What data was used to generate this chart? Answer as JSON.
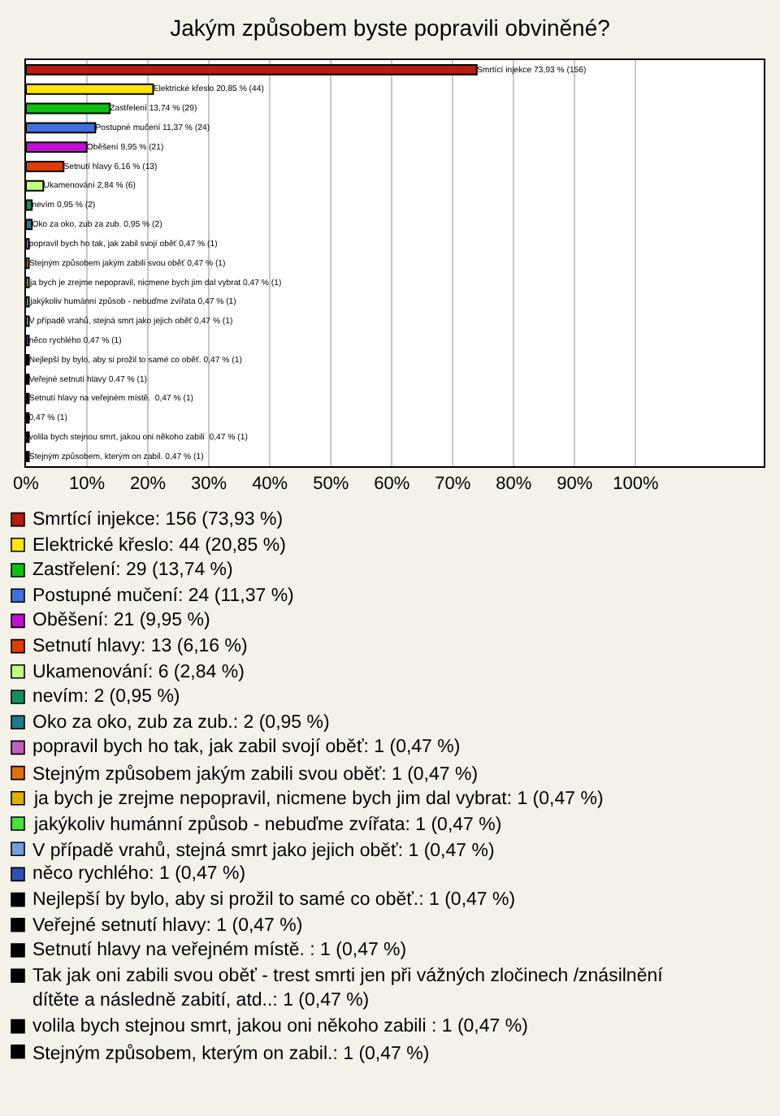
{
  "chart_data": {
    "type": "bar",
    "orientation": "horizontal",
    "title": "Jakým způsobem byste popravili obviněné?",
    "categories": [
      null,
      null,
      null,
      null,
      null,
      null,
      null,
      null,
      null,
      null,
      null,
      null,
      null,
      null,
      null,
      null,
      null,
      null,
      null,
      null,
      null
    ],
    "xlim": [
      0,
      121
    ],
    "xticks": [
      {
        "value": 0,
        "label": "0%"
      },
      {
        "value": 10,
        "label": "10%"
      },
      {
        "value": 20,
        "label": "20%"
      },
      {
        "value": 30,
        "label": "30%"
      },
      {
        "value": 40,
        "label": "40%"
      },
      {
        "value": 50,
        "label": "50%"
      },
      {
        "value": 60,
        "label": "60%"
      },
      {
        "value": 70,
        "label": "70%"
      },
      {
        "value": 80,
        "label": "80%"
      },
      {
        "value": 90,
        "label": "90%"
      },
      {
        "value": 100,
        "label": "100%"
      }
    ],
    "grid": "x",
    "legend": "bottom",
    "tick_labels": "x",
    "series": [
      {
        "name": "Smrtící injekce: 156 (73,93 %)",
        "color": "#b81c0c",
        "values": [
          73.93,
          null,
          null,
          null,
          null,
          null,
          null,
          null,
          null,
          null,
          null,
          null,
          null,
          null,
          null,
          null,
          null,
          null,
          null,
          null,
          null
        ],
        "value_labels": [
          "Smrtící injekce 73,93 % (156)",
          null,
          null,
          null,
          null,
          null,
          null,
          null,
          null,
          null,
          null,
          null,
          null,
          null,
          null,
          null,
          null,
          null,
          null,
          null,
          null
        ]
      },
      {
        "name": "Elektrické křeslo: 44 (20,85 %)",
        "color": "#ffe500",
        "values": [
          null,
          20.85,
          null,
          null,
          null,
          null,
          null,
          null,
          null,
          null,
          null,
          null,
          null,
          null,
          null,
          null,
          null,
          null,
          null,
          null,
          null
        ],
        "value_labels": [
          null,
          "Elektrické křeslo 20,85 % (44)",
          null,
          null,
          null,
          null,
          null,
          null,
          null,
          null,
          null,
          null,
          null,
          null,
          null,
          null,
          null,
          null,
          null,
          null,
          null
        ]
      },
      {
        "name": "Zastřelení: 29 (13,74 %)",
        "color": "#10c010",
        "values": [
          null,
          null,
          13.74,
          null,
          null,
          null,
          null,
          null,
          null,
          null,
          null,
          null,
          null,
          null,
          null,
          null,
          null,
          null,
          null,
          null,
          null
        ],
        "value_labels": [
          null,
          null,
          "Zastřelení 13,74 % (29)",
          null,
          null,
          null,
          null,
          null,
          null,
          null,
          null,
          null,
          null,
          null,
          null,
          null,
          null,
          null,
          null,
          null,
          null
        ]
      },
      {
        "name": "Postupné mučení: 24 (11,37 %)",
        "color": "#4070e0",
        "values": [
          null,
          null,
          null,
          11.37,
          null,
          null,
          null,
          null,
          null,
          null,
          null,
          null,
          null,
          null,
          null,
          null,
          null,
          null,
          null,
          null,
          null
        ],
        "value_labels": [
          null,
          null,
          null,
          "Postupné mučení 11,37 % (24)",
          null,
          null,
          null,
          null,
          null,
          null,
          null,
          null,
          null,
          null,
          null,
          null,
          null,
          null,
          null,
          null,
          null
        ]
      },
      {
        "name": "Oběšení: 21 (9,95 %)",
        "color": "#c010d0",
        "values": [
          null,
          null,
          null,
          null,
          9.95,
          null,
          null,
          null,
          null,
          null,
          null,
          null,
          null,
          null,
          null,
          null,
          null,
          null,
          null,
          null,
          null
        ],
        "value_labels": [
          null,
          null,
          null,
          null,
          "Oběšení 9,95 % (21)",
          null,
          null,
          null,
          null,
          null,
          null,
          null,
          null,
          null,
          null,
          null,
          null,
          null,
          null,
          null,
          null
        ]
      },
      {
        "name": "Setnutí hlavy: 13 (6,16 %)",
        "color": "#e03c08",
        "values": [
          null,
          null,
          null,
          null,
          null,
          6.16,
          null,
          null,
          null,
          null,
          null,
          null,
          null,
          null,
          null,
          null,
          null,
          null,
          null,
          null,
          null
        ],
        "value_labels": [
          null,
          null,
          null,
          null,
          null,
          "Setnutí hlavy 6,16 % (13)",
          null,
          null,
          null,
          null,
          null,
          null,
          null,
          null,
          null,
          null,
          null,
          null,
          null,
          null,
          null
        ]
      },
      {
        "name": "Ukamenování: 6 (2,84 %)",
        "color": "#c0ff80",
        "values": [
          null,
          null,
          null,
          null,
          null,
          null,
          2.84,
          null,
          null,
          null,
          null,
          null,
          null,
          null,
          null,
          null,
          null,
          null,
          null,
          null,
          null
        ],
        "value_labels": [
          null,
          null,
          null,
          null,
          null,
          null,
          "Ukamenování 2,84 % (6)",
          null,
          null,
          null,
          null,
          null,
          null,
          null,
          null,
          null,
          null,
          null,
          null,
          null,
          null
        ]
      },
      {
        "name": "nevím: 2 (0,95 %)",
        "color": "#109060",
        "values": [
          null,
          null,
          null,
          null,
          null,
          null,
          null,
          0.95,
          null,
          null,
          null,
          null,
          null,
          null,
          null,
          null,
          null,
          null,
          null,
          null,
          null
        ],
        "value_labels": [
          null,
          null,
          null,
          null,
          null,
          null,
          null,
          "nevím 0,95 % (2)",
          null,
          null,
          null,
          null,
          null,
          null,
          null,
          null,
          null,
          null,
          null,
          null,
          null
        ]
      },
      {
        "name": "Oko za oko, zub za zub.: 2 (0,95 %)",
        "color": "#207890",
        "values": [
          null,
          null,
          null,
          null,
          null,
          null,
          null,
          null,
          0.95,
          null,
          null,
          null,
          null,
          null,
          null,
          null,
          null,
          null,
          null,
          null,
          null
        ],
        "value_labels": [
          null,
          null,
          null,
          null,
          null,
          null,
          null,
          null,
          "Oko za oko, zub za zub. 0,95 % (2)",
          null,
          null,
          null,
          null,
          null,
          null,
          null,
          null,
          null,
          null,
          null,
          null
        ]
      },
      {
        "name": "popravil bych ho tak, jak zabil svojí oběť: 1 (0,47 %)",
        "color": "#c060c0",
        "values": [
          null,
          null,
          null,
          null,
          null,
          null,
          null,
          null,
          null,
          0.47,
          null,
          null,
          null,
          null,
          null,
          null,
          null,
          null,
          null,
          null,
          null
        ],
        "value_labels": [
          null,
          null,
          null,
          null,
          null,
          null,
          null,
          null,
          null,
          "popravil bych ho tak, jak zabil svojí oběť 0,47 % (1)",
          null,
          null,
          null,
          null,
          null,
          null,
          null,
          null,
          null,
          null,
          null
        ]
      },
      {
        "name": "Stejným způsobem jakým zabili svou oběť: 1 (0,47 %)",
        "color": "#e07010",
        "values": [
          null,
          null,
          null,
          null,
          null,
          null,
          null,
          null,
          null,
          null,
          0.47,
          null,
          null,
          null,
          null,
          null,
          null,
          null,
          null,
          null,
          null
        ],
        "value_labels": [
          null,
          null,
          null,
          null,
          null,
          null,
          null,
          null,
          null,
          null,
          "Stejným způsobem jakým zabili svou oběť 0,47 % (1)",
          null,
          null,
          null,
          null,
          null,
          null,
          null,
          null,
          null,
          null
        ]
      },
      {
        "name": "ja bych je zrejme nepopravil, nicmene bych jim dal vybrat: 1 (0,47 %)",
        "color": "#e0b000",
        "values": [
          null,
          null,
          null,
          null,
          null,
          null,
          null,
          null,
          null,
          null,
          null,
          0.47,
          null,
          null,
          null,
          null,
          null,
          null,
          null,
          null,
          null
        ],
        "value_labels": [
          null,
          null,
          null,
          null,
          null,
          null,
          null,
          null,
          null,
          null,
          null,
          "ja bych je zrejme nepopravil, nicmene bych jim dal vybrat 0,47 % (1)",
          null,
          null,
          null,
          null,
          null,
          null,
          null,
          null,
          null
        ]
      },
      {
        "name": "jakýkoliv humánní způsob - nebuďme zvířata: 1 (0,47 %)",
        "color": "#50e040",
        "values": [
          null,
          null,
          null,
          null,
          null,
          null,
          null,
          null,
          null,
          null,
          null,
          null,
          0.47,
          null,
          null,
          null,
          null,
          null,
          null,
          null,
          null
        ],
        "value_labels": [
          null,
          null,
          null,
          null,
          null,
          null,
          null,
          null,
          null,
          null,
          null,
          null,
          "jakýkoliv humánní způsob - nebuďme zvířata 0,47 % (1)",
          null,
          null,
          null,
          null,
          null,
          null,
          null,
          null
        ]
      },
      {
        "name": "V případě vrahů, stejná smrt jako jejich oběť: 1 (0,47 %)",
        "color": "#70a0e0",
        "values": [
          null,
          null,
          null,
          null,
          null,
          null,
          null,
          null,
          null,
          null,
          null,
          null,
          null,
          0.47,
          null,
          null,
          null,
          null,
          null,
          null,
          null
        ],
        "value_labels": [
          null,
          null,
          null,
          null,
          null,
          null,
          null,
          null,
          null,
          null,
          null,
          null,
          null,
          "V případě vrahů, stejná smrt jako jejich oběť 0,47 % (1)",
          null,
          null,
          null,
          null,
          null,
          null,
          null
        ]
      },
      {
        "name": "něco rychlého: 1 (0,47 %)",
        "color": "#3050b0",
        "values": [
          null,
          null,
          null,
          null,
          null,
          null,
          null,
          null,
          null,
          null,
          null,
          null,
          null,
          null,
          0.47,
          null,
          null,
          null,
          null,
          null,
          null
        ],
        "value_labels": [
          null,
          null,
          null,
          null,
          null,
          null,
          null,
          null,
          null,
          null,
          null,
          null,
          null,
          null,
          "něco rychlého 0,47 % (1)",
          null,
          null,
          null,
          null,
          null,
          null
        ]
      },
      {
        "name": "Nejlepší by bylo, aby si prožil to samé co oběť.: 1 (0,47 %)",
        "color": "#000000",
        "values": [
          null,
          null,
          null,
          null,
          null,
          null,
          null,
          null,
          null,
          null,
          null,
          null,
          null,
          null,
          null,
          0.47,
          null,
          null,
          null,
          null,
          null
        ],
        "value_labels": [
          null,
          null,
          null,
          null,
          null,
          null,
          null,
          null,
          null,
          null,
          null,
          null,
          null,
          null,
          null,
          "Nejlepší by bylo, aby si prožil to samé co oběť. 0,47 % (1)",
          null,
          null,
          null,
          null,
          null
        ]
      },
      {
        "name": "Veřejné setnutí hlavy: 1 (0,47 %)",
        "color": "#000000",
        "values": [
          null,
          null,
          null,
          null,
          null,
          null,
          null,
          null,
          null,
          null,
          null,
          null,
          null,
          null,
          null,
          null,
          0.47,
          null,
          null,
          null,
          null
        ],
        "value_labels": [
          null,
          null,
          null,
          null,
          null,
          null,
          null,
          null,
          null,
          null,
          null,
          null,
          null,
          null,
          null,
          null,
          "Veřejné setnutí hlavy 0,47 % (1)",
          null,
          null,
          null,
          null
        ]
      },
      {
        "name": "Setnutí hlavy na veřejném místě. : 1 (0,47 %)",
        "color": "#000000",
        "values": [
          null,
          null,
          null,
          null,
          null,
          null,
          null,
          null,
          null,
          null,
          null,
          null,
          null,
          null,
          null,
          null,
          null,
          0.47,
          null,
          null,
          null
        ],
        "value_labels": [
          null,
          null,
          null,
          null,
          null,
          null,
          null,
          null,
          null,
          null,
          null,
          null,
          null,
          null,
          null,
          null,
          null,
          "Setnutí hlavy na veřejném místě.  0,47 % (1)",
          null,
          null,
          null
        ]
      },
      {
        "name": "Tak jak oni zabili svou oběť - trest smrti jen při vážných zločinech /znásilnění dítěte a následně zabití, atd..: 1 (0,47 %)",
        "color": "#000000",
        "values": [
          null,
          null,
          null,
          null,
          null,
          null,
          null,
          null,
          null,
          null,
          null,
          null,
          null,
          null,
          null,
          null,
          null,
          null,
          0.47,
          null,
          null
        ],
        "value_labels": [
          null,
          null,
          null,
          null,
          null,
          null,
          null,
          null,
          null,
          null,
          null,
          null,
          null,
          null,
          null,
          null,
          null,
          null,
          "0,47 % (1)",
          null,
          null
        ]
      },
      {
        "name": "volila bych stejnou smrt, jakou oni někoho zabili : 1 (0,47 %)",
        "color": "#000000",
        "values": [
          null,
          null,
          null,
          null,
          null,
          null,
          null,
          null,
          null,
          null,
          null,
          null,
          null,
          null,
          null,
          null,
          null,
          null,
          null,
          0.47,
          null
        ],
        "value_labels": [
          null,
          null,
          null,
          null,
          null,
          null,
          null,
          null,
          null,
          null,
          null,
          null,
          null,
          null,
          null,
          null,
          null,
          null,
          null,
          "volila bych stejnou smrt, jakou oni někoho zabili  0,47 % (1)",
          null
        ]
      },
      {
        "name": "Stejným způsobem, kterým on zabil.: 1 (0,47 %)",
        "color": "#000000",
        "values": [
          null,
          null,
          null,
          null,
          null,
          null,
          null,
          null,
          null,
          null,
          null,
          null,
          null,
          null,
          null,
          null,
          null,
          null,
          null,
          null,
          0.47
        ],
        "value_labels": [
          null,
          null,
          null,
          null,
          null,
          null,
          null,
          null,
          null,
          null,
          null,
          null,
          null,
          null,
          null,
          null,
          null,
          null,
          null,
          null,
          "Stejným způsobem, kterým on zabil. 0,47 % (1)"
        ]
      }
    ]
  }
}
